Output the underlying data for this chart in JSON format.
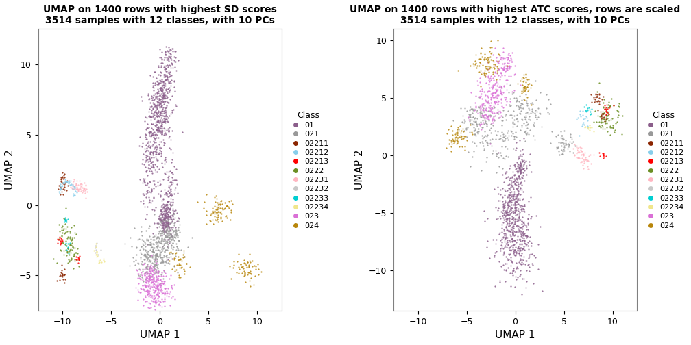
{
  "title1": "UMAP on 1400 rows with highest SD scores\n3514 samples with 12 classes, with 10 PCs",
  "title2": "UMAP on 1400 rows with highest ATC scores, rows are scaled\n3514 samples with 12 classes, with 10 PCs",
  "xlabel": "UMAP 1",
  "ylabel": "UMAP 2",
  "classes": [
    "01",
    "021",
    "02211",
    "02212",
    "02213",
    "0222",
    "02231",
    "02232",
    "02233",
    "02234",
    "023",
    "024"
  ],
  "colors": {
    "01": "#8B5E8B",
    "021": "#999999",
    "02211": "#8B2500",
    "02212": "#87CEEB",
    "02213": "#FF0000",
    "0222": "#6B8E23",
    "02231": "#FFB6C1",
    "02232": "#C8C8C8",
    "02233": "#00CED1",
    "02234": "#F0E68C",
    "023": "#DA70D6",
    "024": "#B8860B"
  },
  "xlim1": [
    -12.5,
    12.5
  ],
  "ylim1": [
    -7.5,
    12.5
  ],
  "xlim2": [
    -12.5,
    12.5
  ],
  "ylim2": [
    -13.5,
    11.0
  ],
  "xticks1": [
    -10,
    -5,
    0,
    5,
    10
  ],
  "yticks1": [
    -5,
    0,
    5,
    10
  ],
  "xticks2": [
    -10,
    -5,
    0,
    5,
    10
  ],
  "yticks2": [
    -10,
    -5,
    0,
    5,
    10
  ],
  "point_size": 2.5,
  "alpha": 0.85
}
